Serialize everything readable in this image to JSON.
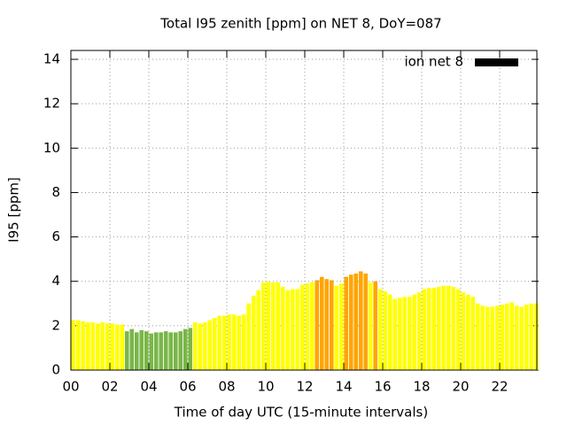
{
  "chart_data": {
    "type": "bar",
    "title": "Total I95 zenith [ppm] on NET 8, DoY=087",
    "x_label": "Time of day UTC (15-minute intervals)",
    "y_label": "I95 [ppm]",
    "legend": {
      "label": "ion net 8",
      "color": "#000000",
      "position": "top-right"
    },
    "grid": true,
    "xlim": [
      0,
      24
    ],
    "ylim": [
      0,
      14.4
    ],
    "xticks": [
      {
        "value": 0,
        "label": "00"
      },
      {
        "value": 2,
        "label": "02"
      },
      {
        "value": 4,
        "label": "04"
      },
      {
        "value": 6,
        "label": "06"
      },
      {
        "value": 8,
        "label": "08"
      },
      10,
      12,
      14,
      16,
      18,
      20,
      22
    ],
    "yticks": [
      0,
      2,
      4,
      6,
      8,
      10,
      12,
      14
    ],
    "x": [
      0,
      0.25,
      0.5,
      0.75,
      1,
      1.25,
      1.5,
      1.75,
      2,
      2.25,
      2.5,
      2.75,
      3,
      3.25,
      3.5,
      3.75,
      4,
      4.25,
      4.5,
      4.75,
      5,
      5.25,
      5.5,
      5.75,
      6,
      6.25,
      6.5,
      6.75,
      7,
      7.25,
      7.5,
      7.75,
      8,
      8.25,
      8.5,
      8.75,
      9,
      9.25,
      9.5,
      9.75,
      10,
      10.25,
      10.5,
      10.75,
      11,
      11.25,
      11.5,
      11.75,
      12,
      12.25,
      12.5,
      12.75,
      13,
      13.25,
      13.5,
      13.75,
      14,
      14.25,
      14.5,
      14.75,
      15,
      15.25,
      15.5,
      15.75,
      16,
      16.25,
      16.5,
      16.75,
      17,
      17.25,
      17.5,
      17.75,
      18,
      18.25,
      18.5,
      18.75,
      19,
      19.25,
      19.5,
      19.75,
      20,
      20.25,
      20.5,
      20.75,
      21,
      21.25,
      21.5,
      21.75,
      22,
      22.25,
      22.5,
      22.75,
      23,
      23.25,
      23.5,
      23.75
    ],
    "values": [
      2.25,
      2.25,
      2.2,
      2.15,
      2.15,
      2.1,
      2.15,
      2.1,
      2.1,
      2.05,
      2.05,
      1.75,
      1.85,
      1.7,
      1.8,
      1.75,
      1.65,
      1.7,
      1.7,
      1.75,
      1.7,
      1.7,
      1.75,
      1.85,
      1.9,
      2.15,
      2.1,
      2.15,
      2.25,
      2.35,
      2.45,
      2.45,
      2.5,
      2.5,
      2.45,
      2.5,
      3.0,
      3.35,
      3.6,
      3.95,
      4.0,
      3.95,
      3.95,
      3.75,
      3.6,
      3.65,
      3.65,
      3.85,
      3.9,
      3.95,
      4.05,
      4.2,
      4.1,
      4.05,
      3.8,
      3.9,
      4.2,
      4.3,
      4.35,
      4.45,
      4.35,
      3.95,
      4.0,
      3.65,
      3.55,
      3.4,
      3.2,
      3.25,
      3.3,
      3.3,
      3.4,
      3.5,
      3.65,
      3.7,
      3.7,
      3.75,
      3.8,
      3.8,
      3.75,
      3.65,
      3.5,
      3.4,
      3.3,
      3.0,
      2.9,
      2.85,
      2.85,
      2.9,
      2.95,
      3.0,
      3.05,
      2.9,
      2.85,
      2.95,
      3.0,
      3.0
    ],
    "colors": [
      "#ffff00",
      "#ffff00",
      "#ffff00",
      "#ffff00",
      "#ffff00",
      "#ffff00",
      "#ffff00",
      "#ffff00",
      "#ffff00",
      "#ffff00",
      "#ffff00",
      "#7ab648",
      "#7ab648",
      "#7ab648",
      "#7ab648",
      "#7ab648",
      "#7ab648",
      "#7ab648",
      "#7ab648",
      "#7ab648",
      "#7ab648",
      "#7ab648",
      "#7ab648",
      "#7ab648",
      "#7ab648",
      "#ffff00",
      "#ffff00",
      "#ffff00",
      "#ffff00",
      "#ffff00",
      "#ffff00",
      "#ffff00",
      "#ffff00",
      "#ffff00",
      "#ffff00",
      "#ffff00",
      "#ffff00",
      "#ffff00",
      "#ffff00",
      "#ffff00",
      "#ffff00",
      "#ffff00",
      "#ffff00",
      "#ffff00",
      "#ffff00",
      "#ffff00",
      "#ffff00",
      "#ffff00",
      "#ffff00",
      "#ffff00",
      "#ffa500",
      "#ffa500",
      "#ffa500",
      "#ffa500",
      "#ffff00",
      "#ffff00",
      "#ffa500",
      "#ffa500",
      "#ffa500",
      "#ffa500",
      "#ffa500",
      "#ffff00",
      "#ffa500",
      "#ffff00",
      "#ffff00",
      "#ffff00",
      "#ffff00",
      "#ffff00",
      "#ffff00",
      "#ffff00",
      "#ffff00",
      "#ffff00",
      "#ffff00",
      "#ffff00",
      "#ffff00",
      "#ffff00",
      "#ffff00",
      "#ffff00",
      "#ffff00",
      "#ffff00",
      "#ffff00",
      "#ffff00",
      "#ffff00",
      "#ffff00",
      "#ffff00",
      "#ffff00",
      "#ffff00",
      "#ffff00",
      "#ffff00",
      "#ffff00",
      "#ffff00",
      "#ffff00",
      "#ffff00",
      "#ffff00",
      "#ffff00",
      "#ffff00"
    ]
  }
}
